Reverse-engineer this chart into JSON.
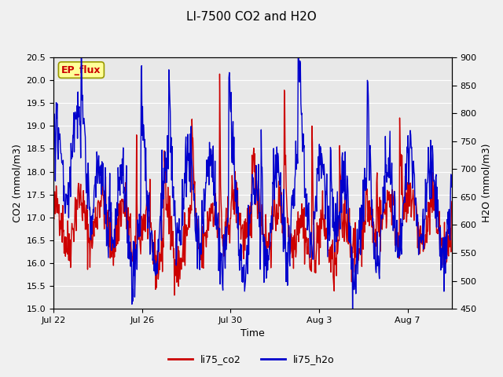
{
  "title": "LI-7500 CO2 and H2O",
  "xlabel": "Time",
  "ylabel_left": "CO2 (mmol/m3)",
  "ylabel_right": "H2O (mmol/m3)",
  "ylim_left": [
    15.0,
    20.5
  ],
  "ylim_right": [
    450,
    900
  ],
  "yticks_left": [
    15.0,
    15.5,
    16.0,
    16.5,
    17.0,
    17.5,
    18.0,
    18.5,
    19.0,
    19.5,
    20.0,
    20.5
  ],
  "yticks_right": [
    450,
    500,
    550,
    600,
    650,
    700,
    750,
    800,
    850,
    900
  ],
  "color_co2": "#cc0000",
  "color_h2o": "#0000cc",
  "line_width": 1.0,
  "bg_color": "#f0f0f0",
  "plot_bg_color": "#e8e8e8",
  "legend_label_co2": "li75_co2",
  "legend_label_h2o": "li75_h2o",
  "annotation_text": "EP_flux",
  "annotation_color": "#cc0000",
  "annotation_bg": "#ffff99",
  "annotation_border": "#999900",
  "x_tick_labels": [
    "Jul 22",
    "Jul 26",
    "Jul 30",
    "Aug 3",
    "Aug 7"
  ],
  "x_tick_positions": [
    0,
    4,
    8,
    12,
    16
  ],
  "n_days": 18,
  "seed": 42
}
